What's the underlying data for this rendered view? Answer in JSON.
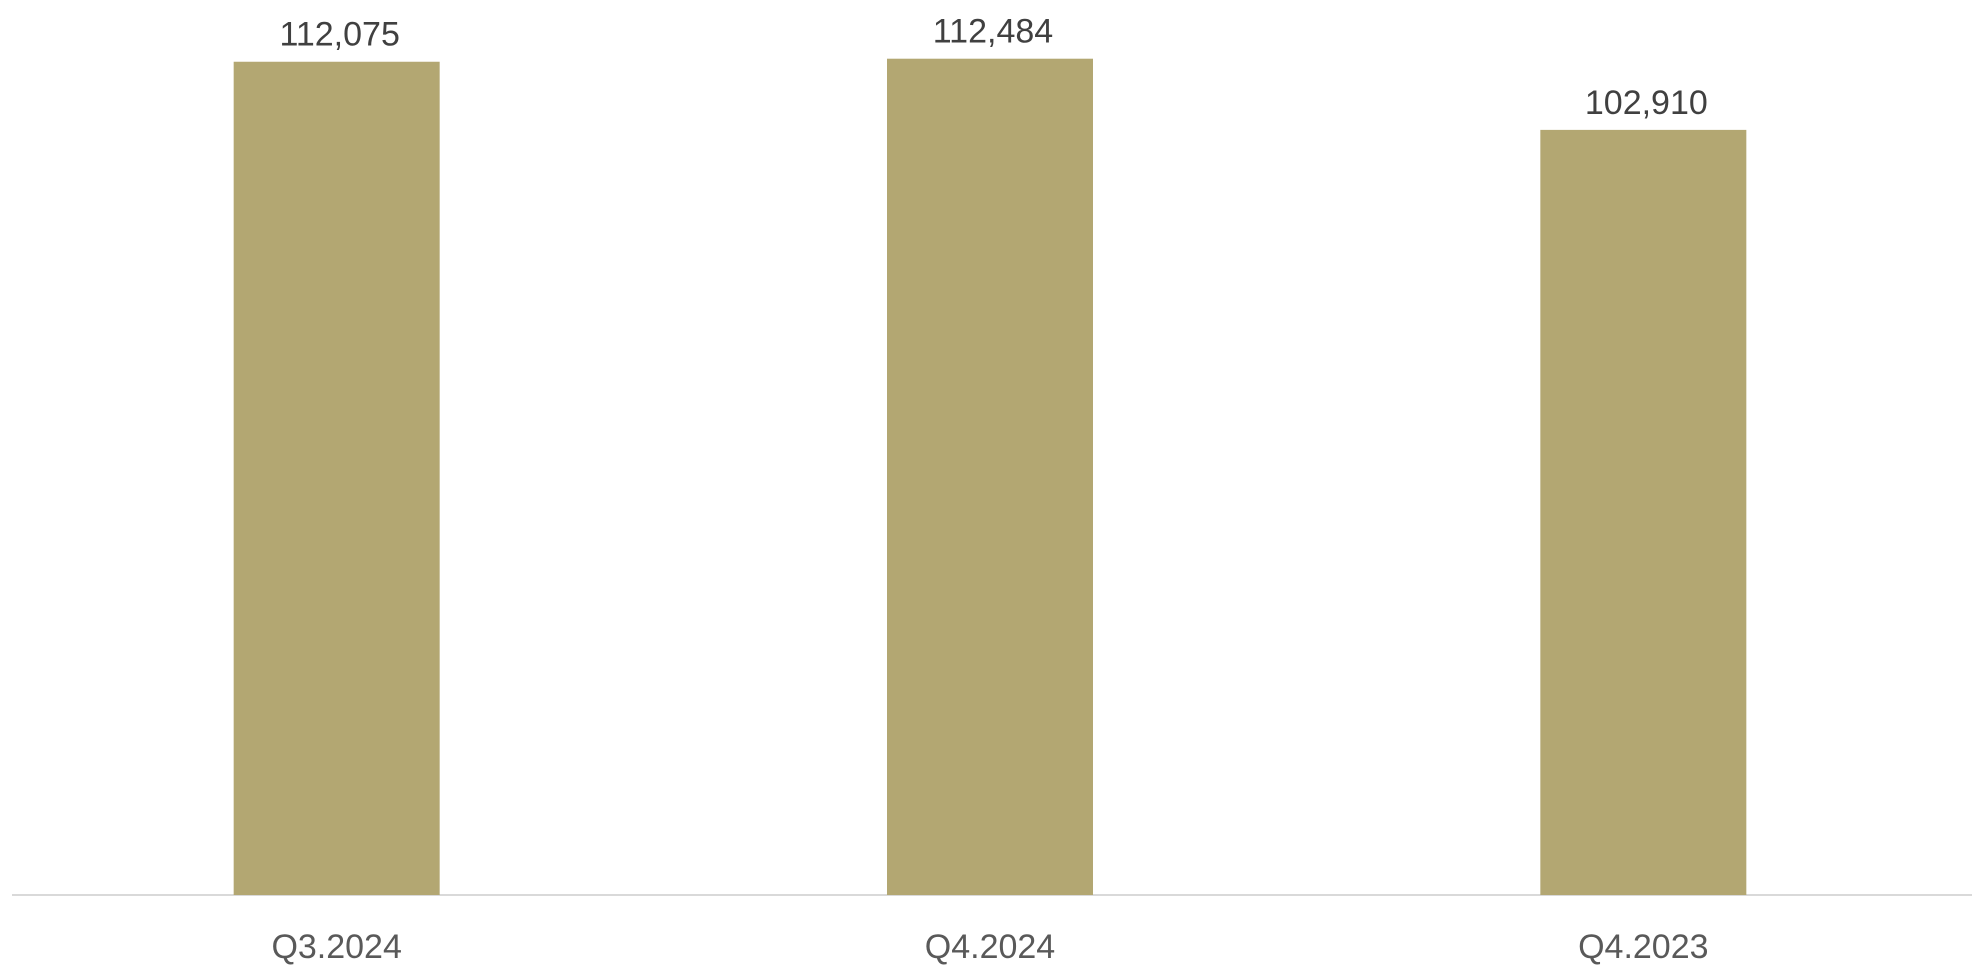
{
  "chart_data": {
    "type": "bar",
    "categories": [
      "Q3.2024",
      "Q4.2024",
      "Q4.2023"
    ],
    "values": [
      112075,
      112484,
      102910
    ],
    "value_labels": [
      "112,075",
      "112,484",
      "102,910"
    ],
    "title": "",
    "xlabel": "",
    "ylabel": "",
    "ylim": [
      0,
      115000
    ],
    "grid": false,
    "legend": "none",
    "colors": {
      "bar": "#b3a772",
      "axis": "#d9d9d9",
      "value_label": "#404040",
      "tick_label": "#595959"
    }
  }
}
